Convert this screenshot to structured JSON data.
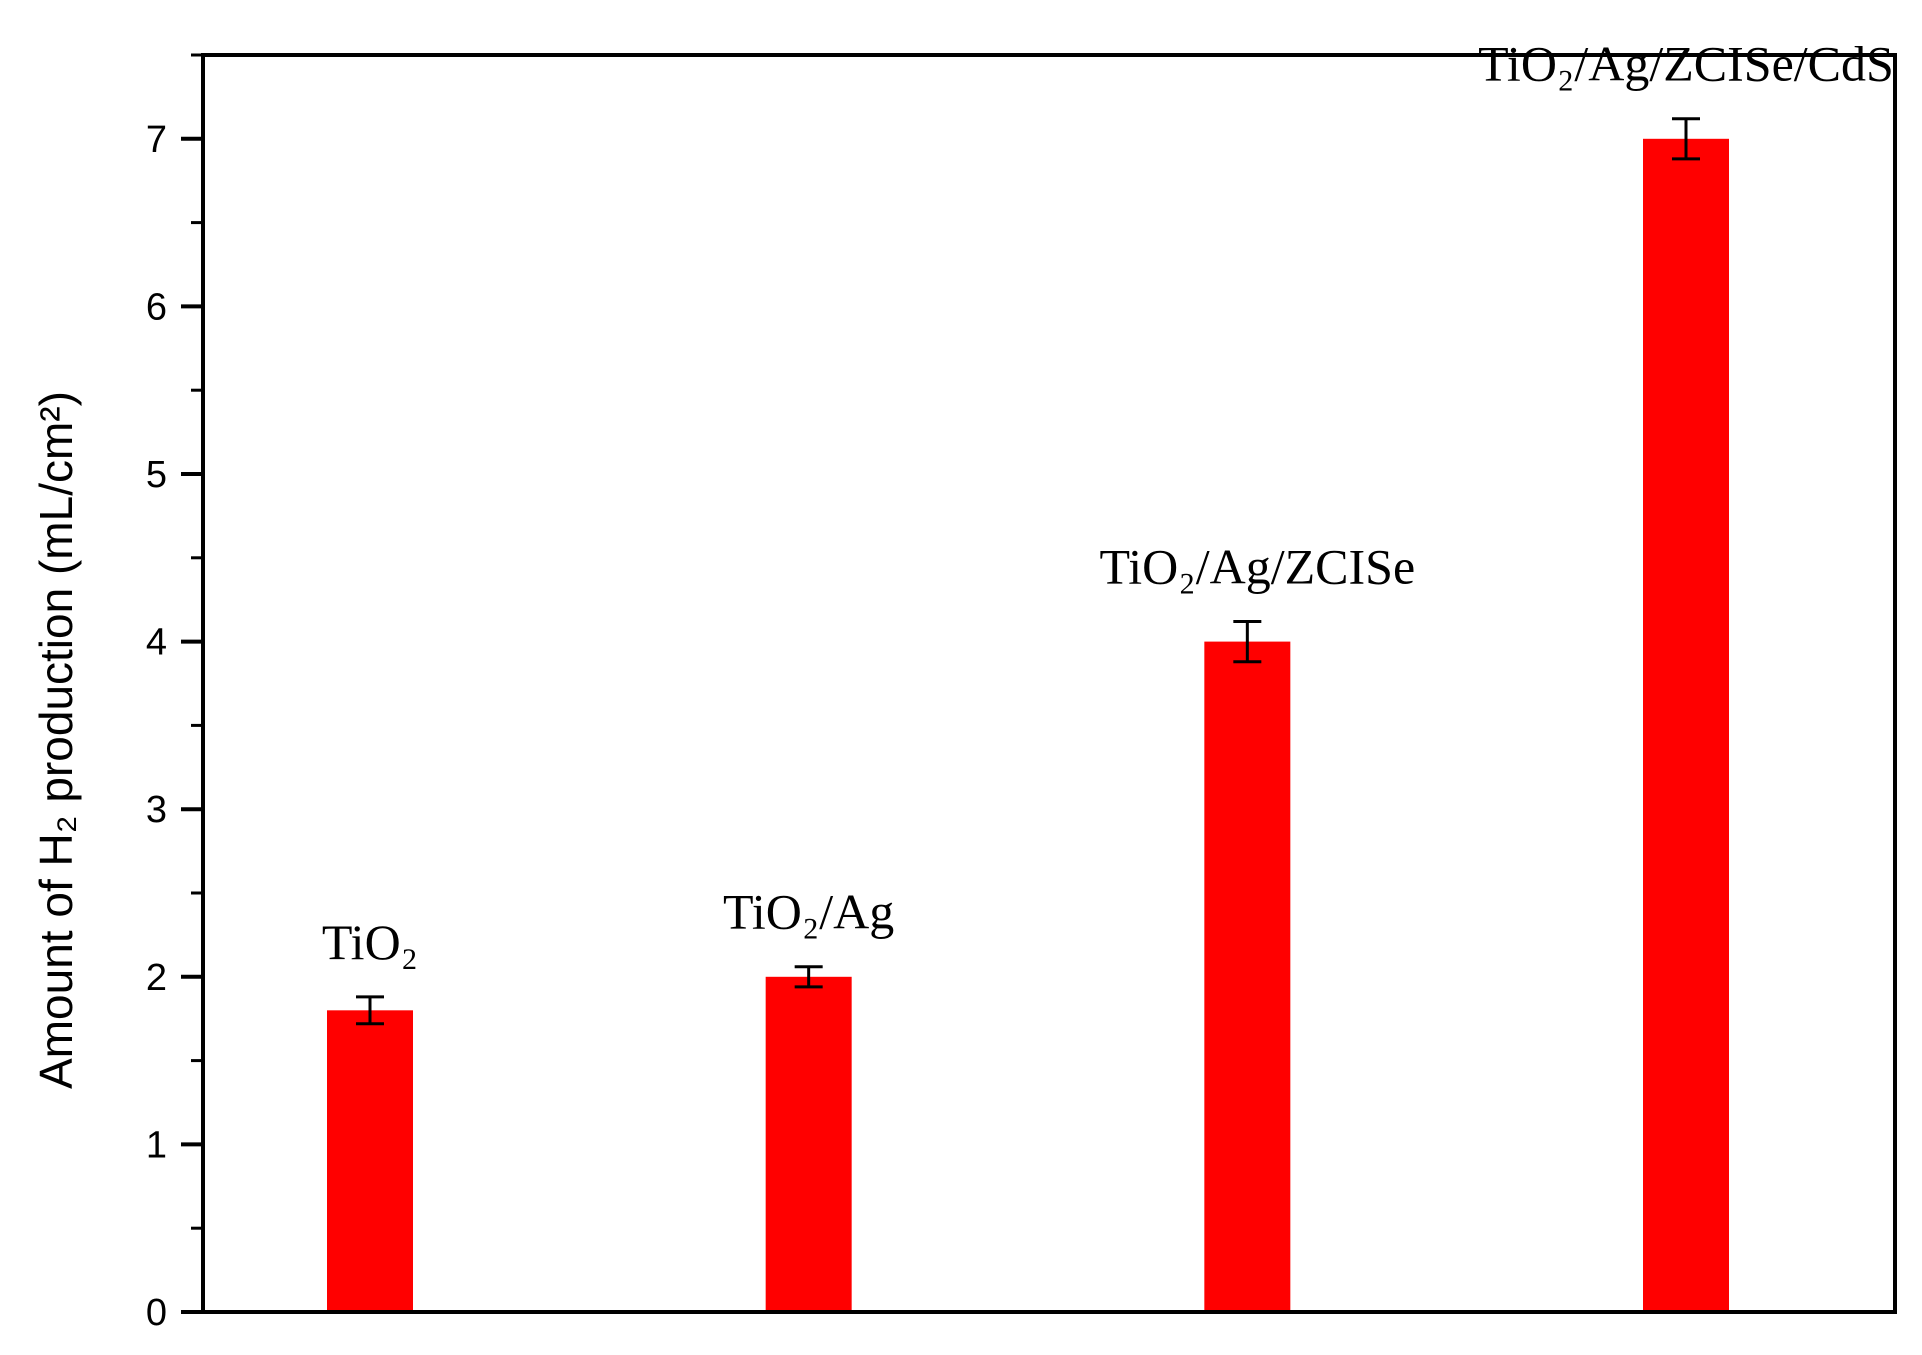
{
  "chart_data": {
    "type": "bar",
    "title": "",
    "xlabel": "",
    "ylabel": "Amount of H₂ production (mL/cm²)",
    "ylim": [
      0,
      7.5
    ],
    "yticks": [
      "0",
      "1",
      "2",
      "3",
      "4",
      "5",
      "6",
      "7"
    ],
    "grid": false,
    "categories": [
      "TiO₂",
      "TiO₂/Ag",
      "TiO₂/Ag/ZCISe",
      "TiO₂/Ag/ZCISe/CdS"
    ],
    "values": [
      1.8,
      2.0,
      4.0,
      7.0
    ],
    "errors": [
      0.08,
      0.06,
      0.12,
      0.12
    ],
    "bar_color": "#ff0000",
    "error_color": "#000000"
  }
}
